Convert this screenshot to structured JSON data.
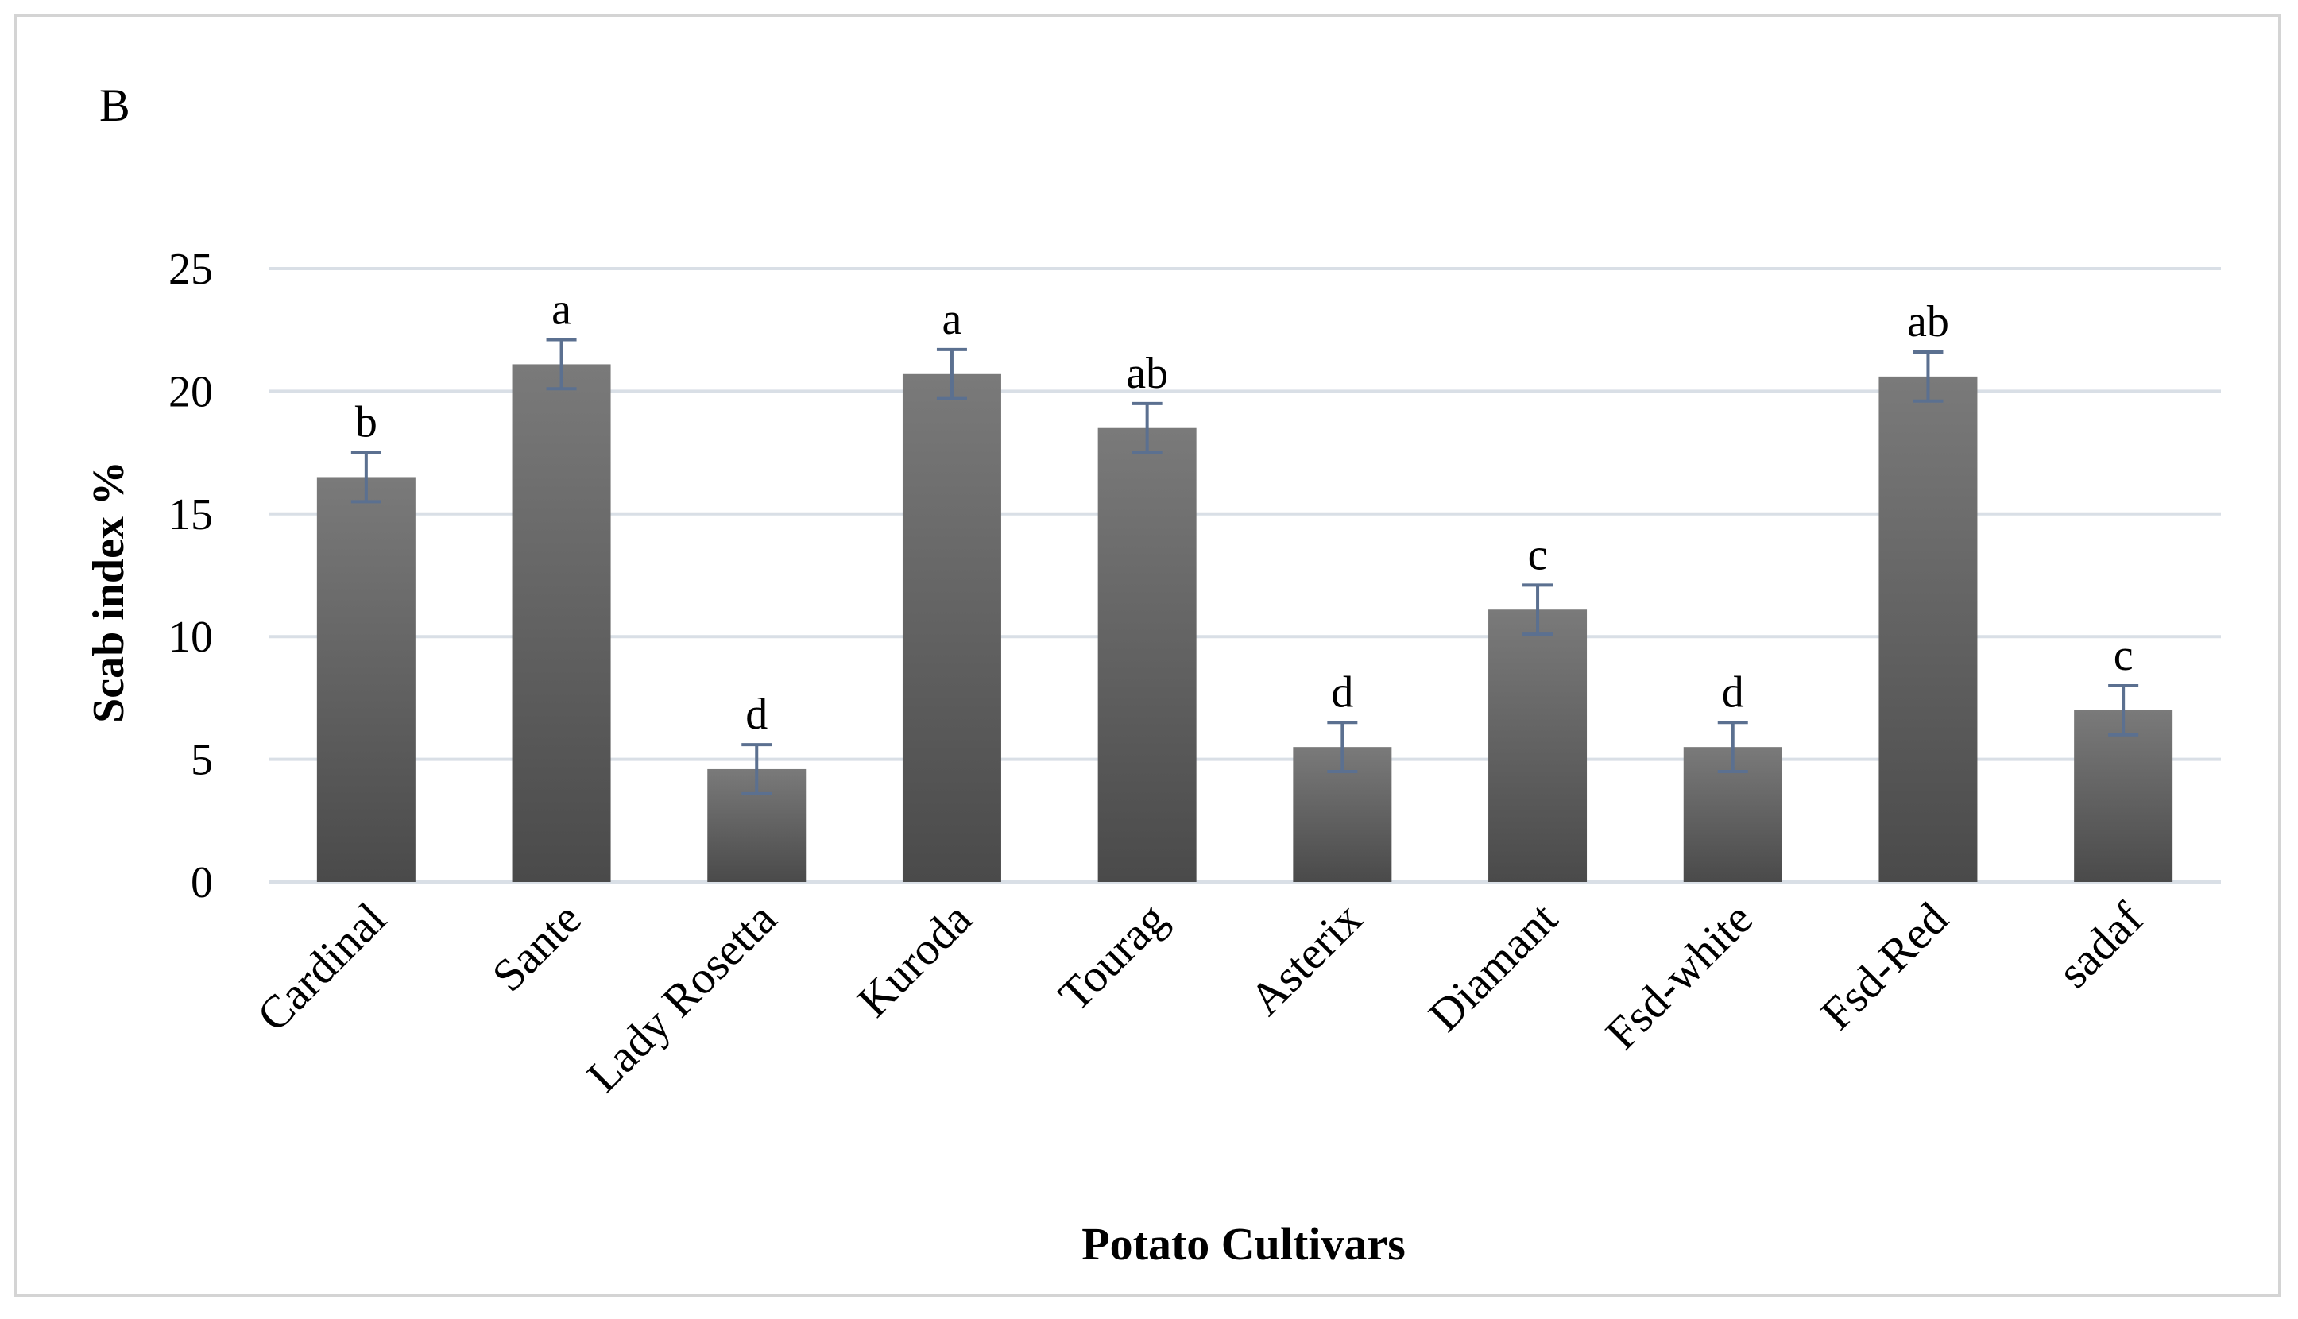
{
  "chart_data": {
    "type": "bar",
    "panel_label": "B",
    "xlabel": "Potato Cultivars",
    "ylabel": "Scab index %",
    "ylim": [
      0,
      25
    ],
    "yticks": [
      "0",
      "5",
      "10",
      "15",
      "20",
      "25"
    ],
    "grid": true,
    "categories": [
      "Cardinal",
      "Sante",
      "Lady Rosetta",
      "Kuroda",
      "Tourag",
      "Asterix",
      "Diamant",
      "Fsd-white",
      "Fsd-Red",
      "sadaf"
    ],
    "values": [
      16.5,
      21.1,
      4.6,
      20.7,
      18.5,
      5.5,
      11.1,
      5.5,
      20.6,
      7.0
    ],
    "errors": [
      1.0,
      1.0,
      1.0,
      1.0,
      1.0,
      1.0,
      1.0,
      1.0,
      1.0,
      1.0
    ],
    "significance_letters": [
      "b",
      "a",
      "d",
      "a",
      "ab",
      "d",
      "c",
      "d",
      "ab",
      "c"
    ],
    "colors": {
      "bar_top": "#7a7a7a",
      "bar_bottom": "#4a4a4a",
      "error_bar": "#5b7090",
      "grid": "#d9dfe6",
      "text": "#000000"
    }
  }
}
